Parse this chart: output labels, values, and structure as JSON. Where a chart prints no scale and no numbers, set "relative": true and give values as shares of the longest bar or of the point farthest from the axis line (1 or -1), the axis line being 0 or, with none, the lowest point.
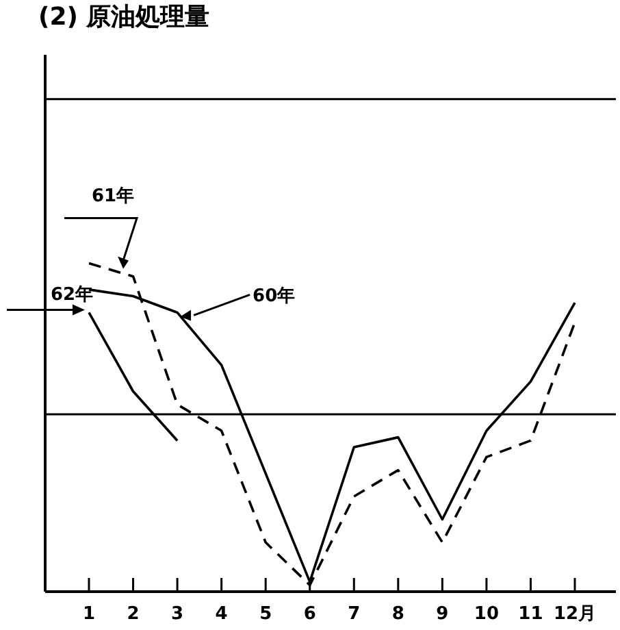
{
  "chart_data": {
    "type": "line",
    "title": "(2) 原油処理量",
    "relative": true,
    "categories": [
      "1",
      "2",
      "3",
      "4",
      "5",
      "6",
      "7",
      "8",
      "9",
      "10",
      "11",
      "12月"
    ],
    "series": [
      {
        "name": "60年",
        "color": "#000000",
        "line_style": "solid",
        "values": [
          0.92,
          0.9,
          0.85,
          0.69,
          0.36,
          0.03,
          0.44,
          0.47,
          0.22,
          0.49,
          0.64,
          0.88
        ]
      },
      {
        "name": "61年",
        "color": "#000000",
        "line_style": "dashed",
        "values": [
          1,
          0.96,
          0.57,
          0.49,
          0.15,
          0.02,
          0.29,
          0.37,
          0.15,
          0.41,
          0.46,
          0.82
        ]
      },
      {
        "name": "62年",
        "color": "#000000",
        "line_style": "solid",
        "values": [
          0.85,
          0.61,
          0.46,
          null,
          null,
          null,
          null,
          null,
          null,
          null,
          null,
          null
        ]
      }
    ],
    "ref_lines": [
      {
        "axis": "y",
        "value": 1.5,
        "color": "#000000"
      },
      {
        "axis": "y",
        "value": 0.54,
        "color": "#000000"
      }
    ],
    "grid": false,
    "marker": "none"
  }
}
